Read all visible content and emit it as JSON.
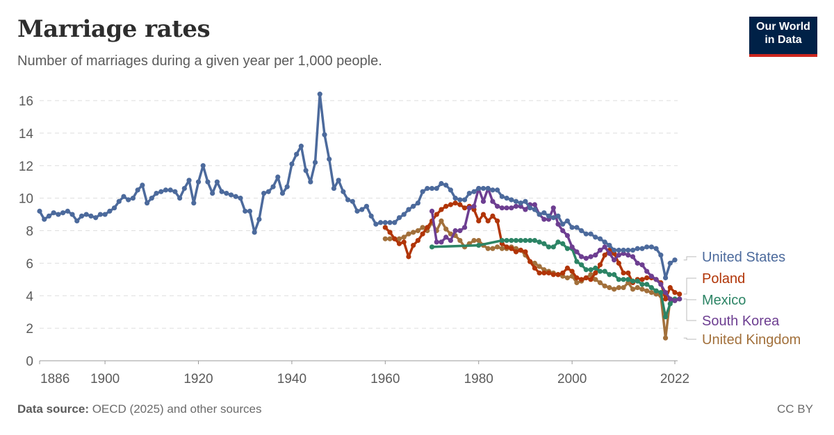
{
  "header": {
    "title": "Marriage rates",
    "subtitle": "Number of marriages during a given year per 1,000 people.",
    "logo_line1": "Our World",
    "logo_line2": "in Data"
  },
  "footer": {
    "source_label": "Data source:",
    "source_text": " OECD (2025) and other sources",
    "license": "CC BY"
  },
  "colors": {
    "United States": "#4c6a9c",
    "Poland": "#b13507",
    "Mexico": "#2c8465",
    "South Korea": "#6d3e91",
    "United Kingdom": "#a2703b",
    "grid": "#dddddd",
    "axis": "#999999",
    "tick_text": "#5b5b5b"
  },
  "chart_data": {
    "type": "line",
    "title": "Marriage rates",
    "subtitle": "Number of marriages during a given year per 1,000 people.",
    "xlabel": "",
    "ylabel": "",
    "xlim": [
      1886,
      2023
    ],
    "ylim": [
      0,
      16.5
    ],
    "x_ticks": [
      1886,
      1900,
      1920,
      1940,
      1960,
      1980,
      2000,
      2022
    ],
    "y_ticks": [
      0,
      2,
      4,
      6,
      8,
      10,
      12,
      14,
      16
    ],
    "grid": "horizontal dashed",
    "legend": "inline labels at right end of lines",
    "series": [
      {
        "name": "United States",
        "x": [
          1886,
          1887,
          1888,
          1889,
          1890,
          1891,
          1892,
          1893,
          1894,
          1895,
          1896,
          1897,
          1898,
          1899,
          1900,
          1901,
          1902,
          1903,
          1904,
          1905,
          1906,
          1907,
          1908,
          1909,
          1910,
          1911,
          1912,
          1913,
          1914,
          1915,
          1916,
          1917,
          1918,
          1919,
          1920,
          1921,
          1922,
          1923,
          1924,
          1925,
          1926,
          1927,
          1928,
          1929,
          1930,
          1931,
          1932,
          1933,
          1934,
          1935,
          1936,
          1937,
          1938,
          1939,
          1940,
          1941,
          1942,
          1943,
          1944,
          1945,
          1946,
          1947,
          1948,
          1949,
          1950,
          1951,
          1952,
          1953,
          1954,
          1955,
          1956,
          1957,
          1958,
          1959,
          1960,
          1961,
          1962,
          1963,
          1964,
          1965,
          1966,
          1967,
          1968,
          1969,
          1970,
          1971,
          1972,
          1973,
          1974,
          1975,
          1976,
          1977,
          1978,
          1979,
          1980,
          1981,
          1982,
          1983,
          1984,
          1985,
          1986,
          1987,
          1988,
          1989,
          1990,
          1991,
          1992,
          1993,
          1994,
          1995,
          1996,
          1997,
          1998,
          1999,
          2000,
          2001,
          2002,
          2003,
          2004,
          2005,
          2006,
          2007,
          2008,
          2009,
          2010,
          2011,
          2012,
          2013,
          2014,
          2015,
          2016,
          2017,
          2018,
          2019,
          2020,
          2021,
          2022
        ],
        "values": [
          9.2,
          8.7,
          8.9,
          9.1,
          9.0,
          9.1,
          9.2,
          9.0,
          8.6,
          8.9,
          9.0,
          8.9,
          8.8,
          9.0,
          9.0,
          9.2,
          9.4,
          9.8,
          10.1,
          9.9,
          10.0,
          10.5,
          10.8,
          9.7,
          10.0,
          10.3,
          10.4,
          10.5,
          10.5,
          10.4,
          10.0,
          10.6,
          11.1,
          9.7,
          11.0,
          12.0,
          11.0,
          10.3,
          11.0,
          10.4,
          10.3,
          10.2,
          10.1,
          10.0,
          9.2,
          9.2,
          7.9,
          8.7,
          10.3,
          10.4,
          10.7,
          11.3,
          10.3,
          10.7,
          12.1,
          12.7,
          13.2,
          11.7,
          11.0,
          12.2,
          16.4,
          13.9,
          12.4,
          10.6,
          11.1,
          10.4,
          9.9,
          9.8,
          9.2,
          9.3,
          9.5,
          8.9,
          8.4,
          8.5,
          8.5,
          8.5,
          8.5,
          8.8,
          9.0,
          9.3,
          9.5,
          9.7,
          10.4,
          10.6,
          10.6,
          10.6,
          10.9,
          10.8,
          10.5,
          10.0,
          9.9,
          9.9,
          10.3,
          10.4,
          10.6,
          10.6,
          10.6,
          10.5,
          10.5,
          10.1,
          10.0,
          9.9,
          9.8,
          9.7,
          9.8,
          9.4,
          9.3,
          9.0,
          9.1,
          8.9,
          8.8,
          8.9,
          8.4,
          8.6,
          8.2,
          8.2,
          8.0,
          7.8,
          7.8,
          7.6,
          7.5,
          7.3,
          7.1,
          6.8,
          6.8,
          6.8,
          6.8,
          6.8,
          6.9,
          6.9,
          7.0,
          7.0,
          6.9,
          6.5,
          5.1,
          6.0,
          6.2
        ]
      },
      {
        "name": "Poland",
        "x": [
          1960,
          1961,
          1962,
          1963,
          1964,
          1965,
          1966,
          1967,
          1968,
          1969,
          1970,
          1971,
          1972,
          1973,
          1974,
          1975,
          1976,
          1977,
          1978,
          1979,
          1980,
          1981,
          1982,
          1983,
          1984,
          1985,
          1986,
          1987,
          1988,
          1989,
          1990,
          1991,
          1992,
          1993,
          1994,
          1995,
          1996,
          1997,
          1998,
          1999,
          2000,
          2001,
          2002,
          2003,
          2004,
          2005,
          2006,
          2007,
          2008,
          2009,
          2010,
          2011,
          2012,
          2013,
          2014,
          2015,
          2016,
          2017,
          2018,
          2019,
          2020,
          2021,
          2022,
          2023
        ],
        "values": [
          8.2,
          7.9,
          7.5,
          7.2,
          7.3,
          6.4,
          7.1,
          7.4,
          7.8,
          8.2,
          8.6,
          9.0,
          9.3,
          9.5,
          9.6,
          9.7,
          9.6,
          9.4,
          9.5,
          9.3,
          8.6,
          9.0,
          8.6,
          8.9,
          8.6,
          7.2,
          7.0,
          6.9,
          6.7,
          6.8,
          6.7,
          6.1,
          5.7,
          5.4,
          5.4,
          5.4,
          5.3,
          5.3,
          5.4,
          5.7,
          5.5,
          5.1,
          5.0,
          5.1,
          5.0,
          5.4,
          5.9,
          6.5,
          6.8,
          6.6,
          6.0,
          5.4,
          5.4,
          4.8,
          5.0,
          5.0,
          5.1,
          5.1,
          5.0,
          4.8,
          3.8,
          4.5,
          4.2,
          4.1
        ]
      },
      {
        "name": "Mexico",
        "x": [
          1970,
          1980,
          1985,
          1986,
          1987,
          1988,
          1989,
          1990,
          1991,
          1992,
          1993,
          1994,
          1995,
          1996,
          1997,
          1998,
          1999,
          2000,
          2001,
          2002,
          2003,
          2004,
          2005,
          2006,
          2007,
          2008,
          2009,
          2010,
          2011,
          2012,
          2013,
          2014,
          2015,
          2016,
          2017,
          2018,
          2019,
          2020,
          2021,
          2022,
          2023
        ],
        "values": [
          7.0,
          7.1,
          7.4,
          7.4,
          7.4,
          7.4,
          7.4,
          7.4,
          7.4,
          7.4,
          7.3,
          7.2,
          7.0,
          7.0,
          7.3,
          7.2,
          6.9,
          6.9,
          6.1,
          5.9,
          5.6,
          5.6,
          5.7,
          5.5,
          5.5,
          5.3,
          5.3,
          5.0,
          5.0,
          5.0,
          4.9,
          4.9,
          4.7,
          4.7,
          4.5,
          4.3,
          4.2,
          2.7,
          3.5,
          3.8,
          3.8
        ]
      },
      {
        "name": "South Korea",
        "x": [
          1970,
          1971,
          1972,
          1973,
          1974,
          1975,
          1976,
          1977,
          1978,
          1979,
          1980,
          1981,
          1982,
          1983,
          1984,
          1985,
          1986,
          1987,
          1988,
          1989,
          1990,
          1991,
          1992,
          1993,
          1994,
          1995,
          1996,
          1997,
          1998,
          1999,
          2000,
          2001,
          2002,
          2003,
          2004,
          2005,
          2006,
          2007,
          2008,
          2009,
          2010,
          2011,
          2012,
          2013,
          2014,
          2015,
          2016,
          2017,
          2018,
          2019,
          2020,
          2021,
          2022,
          2023
        ],
        "values": [
          9.2,
          7.3,
          7.3,
          7.6,
          7.4,
          8.0,
          8.0,
          8.2,
          9.4,
          9.5,
          10.6,
          9.8,
          10.6,
          9.8,
          9.5,
          9.4,
          9.4,
          9.4,
          9.5,
          9.5,
          9.3,
          9.6,
          9.6,
          9.0,
          8.7,
          8.7,
          9.4,
          8.4,
          8.0,
          7.7,
          7.0,
          6.7,
          6.4,
          6.3,
          6.4,
          6.5,
          6.8,
          7.0,
          6.6,
          6.2,
          6.5,
          6.6,
          6.5,
          6.4,
          6.0,
          5.9,
          5.5,
          5.2,
          5.0,
          4.7,
          4.2,
          3.8,
          3.7,
          3.8
        ]
      },
      {
        "name": "United Kingdom",
        "x": [
          1960,
          1961,
          1962,
          1963,
          1964,
          1965,
          1966,
          1967,
          1968,
          1969,
          1970,
          1971,
          1972,
          1973,
          1974,
          1975,
          1976,
          1977,
          1978,
          1979,
          1980,
          1981,
          1982,
          1983,
          1984,
          1985,
          1986,
          1987,
          1988,
          1989,
          1990,
          1991,
          1992,
          1993,
          1994,
          1995,
          1996,
          1997,
          1998,
          1999,
          2000,
          2001,
          2002,
          2003,
          2004,
          2005,
          2006,
          2007,
          2008,
          2009,
          2010,
          2011,
          2012,
          2013,
          2014,
          2015,
          2016,
          2017,
          2018,
          2019,
          2020,
          2021,
          2022
        ],
        "values": [
          7.5,
          7.5,
          7.5,
          7.5,
          7.6,
          7.8,
          7.9,
          8.0,
          8.2,
          8.0,
          8.5,
          8.0,
          8.6,
          8.1,
          7.8,
          7.7,
          7.4,
          7.0,
          7.2,
          7.4,
          7.4,
          7.1,
          6.9,
          6.9,
          7.0,
          6.9,
          6.9,
          7.0,
          6.9,
          6.8,
          6.5,
          6.1,
          6.0,
          5.8,
          5.6,
          5.5,
          5.4,
          5.3,
          5.2,
          5.1,
          5.2,
          4.8,
          4.9,
          5.1,
          5.3,
          5.0,
          4.8,
          4.6,
          4.5,
          4.4,
          4.5,
          4.5,
          4.8,
          4.4,
          4.5,
          4.4,
          4.3,
          4.2,
          4.1,
          4.0,
          1.4,
          3.8,
          3.7
        ]
      }
    ]
  }
}
